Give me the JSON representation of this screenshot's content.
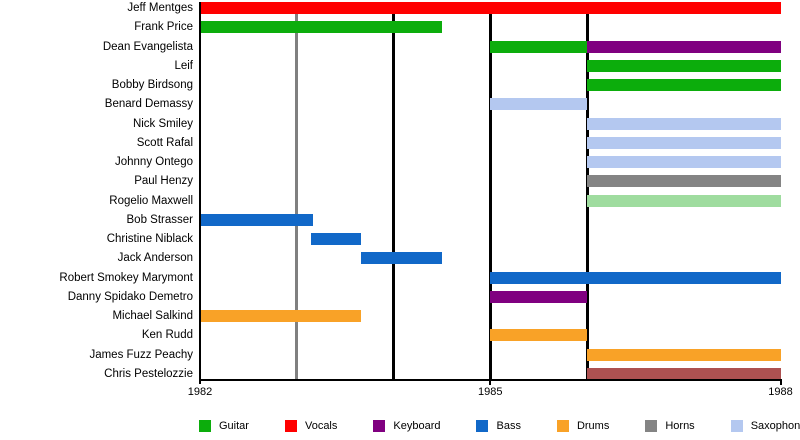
{
  "chart_data": {
    "type": "bar",
    "subtype": "horizontal-timeline-gantt",
    "title": "",
    "xlabel": "",
    "ylabel": "",
    "x_axis": {
      "range": [
        1982,
        1988
      ],
      "ticks": [
        1982,
        1985,
        1988
      ],
      "grid": false
    },
    "legend_position": "bottom",
    "palette": {
      "guitar": "#0CAD0C",
      "vocals": "#FF0000",
      "keyboard": "#800080",
      "bass": "#1168C8",
      "drums": "#F9A227",
      "horns": "#848484",
      "saxophone": "#B4C8F0",
      "light-green": "#9FDC9F",
      "brown": "#AD5151"
    },
    "era_lines": [
      {
        "year": 1983,
        "color": "#808080"
      },
      {
        "year": 1984,
        "color": "#000000"
      },
      {
        "year": 1985,
        "color": "#000000"
      },
      {
        "year": 1986,
        "color": "#000000"
      }
    ],
    "members": [
      {
        "name": "Jeff Mentges",
        "bars": [
          {
            "start": 1982,
            "end": 1988,
            "role": "vocals"
          }
        ]
      },
      {
        "name": "Frank Price",
        "bars": [
          {
            "start": 1982,
            "end": 1984.5,
            "role": "guitar"
          }
        ]
      },
      {
        "name": "Dean Evangelista",
        "bars": [
          {
            "start": 1985,
            "end": 1986,
            "role": "guitar"
          },
          {
            "start": 1986,
            "end": 1988,
            "role": "keyboard"
          }
        ]
      },
      {
        "name": "Leif",
        "bars": [
          {
            "start": 1986,
            "end": 1988,
            "role": "guitar"
          }
        ]
      },
      {
        "name": "Bobby Birdsong",
        "bars": [
          {
            "start": 1986,
            "end": 1988,
            "role": "guitar"
          }
        ]
      },
      {
        "name": "Benard Demassy",
        "bars": [
          {
            "start": 1985,
            "end": 1986,
            "role": "saxophone"
          }
        ]
      },
      {
        "name": "Nick Smiley",
        "bars": [
          {
            "start": 1986,
            "end": 1988,
            "role": "saxophone"
          }
        ]
      },
      {
        "name": "Scott Rafal",
        "bars": [
          {
            "start": 1986,
            "end": 1988,
            "role": "saxophone"
          }
        ]
      },
      {
        "name": "Johnny Ontego",
        "bars": [
          {
            "start": 1986,
            "end": 1988,
            "role": "saxophone"
          }
        ]
      },
      {
        "name": "Paul Henzy",
        "bars": [
          {
            "start": 1986,
            "end": 1988,
            "role": "horns"
          }
        ]
      },
      {
        "name": "Rogelio Maxwell",
        "bars": [
          {
            "start": 1986,
            "end": 1988,
            "role": "light-green"
          }
        ]
      },
      {
        "name": "Bob Strasser",
        "bars": [
          {
            "start": 1982,
            "end": 1983.17,
            "role": "bass"
          }
        ]
      },
      {
        "name": "Christine Niblack",
        "bars": [
          {
            "start": 1983.15,
            "end": 1983.66,
            "role": "bass"
          }
        ]
      },
      {
        "name": "Jack Anderson",
        "bars": [
          {
            "start": 1983.66,
            "end": 1984.5,
            "role": "bass"
          }
        ]
      },
      {
        "name": "Robert Smokey Marymont",
        "bars": [
          {
            "start": 1985,
            "end": 1988,
            "role": "bass"
          }
        ]
      },
      {
        "name": "Danny Spidako Demetro",
        "bars": [
          {
            "start": 1985,
            "end": 1986,
            "role": "keyboard"
          }
        ]
      },
      {
        "name": "Michael Salkind",
        "bars": [
          {
            "start": 1982,
            "end": 1983.66,
            "role": "drums"
          }
        ]
      },
      {
        "name": "Ken Rudd",
        "bars": [
          {
            "start": 1985,
            "end": 1986,
            "role": "drums"
          }
        ]
      },
      {
        "name": "James Fuzz Peachy",
        "bars": [
          {
            "start": 1986,
            "end": 1988,
            "role": "drums"
          }
        ]
      },
      {
        "name": "Chris Pestelozzie",
        "bars": [
          {
            "start": 1986,
            "end": 1988,
            "role": "brown"
          }
        ]
      }
    ],
    "legend": [
      {
        "label": "Guitar",
        "role": "guitar"
      },
      {
        "label": "Vocals",
        "role": "vocals"
      },
      {
        "label": "Keyboard",
        "role": "keyboard"
      },
      {
        "label": "Bass",
        "role": "bass"
      },
      {
        "label": "Drums",
        "role": "drums"
      },
      {
        "label": "Horns",
        "role": "horns"
      },
      {
        "label": "Saxophone",
        "role": "saxophone"
      }
    ]
  }
}
